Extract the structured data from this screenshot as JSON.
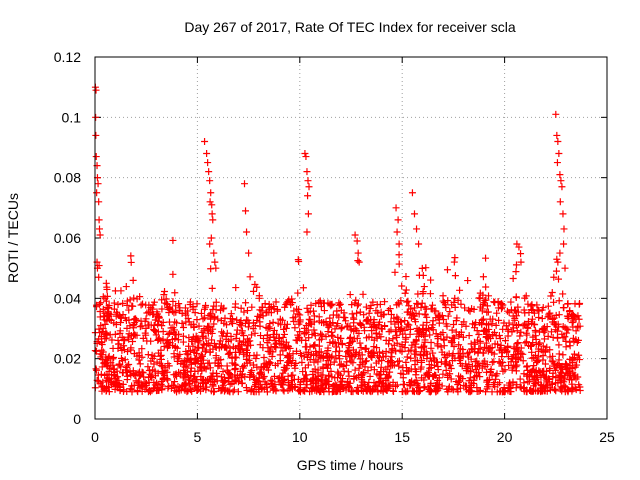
{
  "chart_data": {
    "type": "scatter",
    "title": "Day 267 of 2017, Rate Of TEC Index for receiver scla",
    "xlabel": "GPS time / hours",
    "ylabel": "ROTI / TECUs",
    "xlim": [
      0,
      25
    ],
    "ylim": [
      0,
      0.12
    ],
    "xticks": [
      0,
      5,
      10,
      15,
      20,
      25
    ],
    "yticks": [
      0,
      0.02,
      0.04,
      0.06,
      0.08,
      0.1,
      0.12
    ],
    "xtick_labels": [
      "0",
      "5",
      "10",
      "15",
      "20",
      "25"
    ],
    "ytick_labels": [
      "0",
      "0.02",
      "0.04",
      "0.06",
      "0.08",
      "0.1",
      "0.12"
    ],
    "grid": true,
    "marker": "+",
    "color": "#ff0000",
    "series": [
      {
        "points": [
          [
            0.02,
            0.11
          ],
          [
            0.05,
            0.109
          ],
          [
            0.03,
            0.1
          ],
          [
            0.04,
            0.094
          ],
          [
            0.06,
            0.087
          ],
          [
            0.1,
            0.084
          ],
          [
            0.12,
            0.08
          ],
          [
            0.15,
            0.078
          ],
          [
            0.08,
            0.075
          ],
          [
            0.18,
            0.072
          ],
          [
            0.2,
            0.066
          ],
          [
            0.22,
            0.063
          ],
          [
            0.25,
            0.061
          ],
          [
            0.1,
            0.052
          ],
          [
            0.12,
            0.05
          ],
          [
            0.18,
            0.047
          ],
          [
            0.22,
            0.038
          ],
          [
            0.28,
            0.031
          ],
          [
            0.35,
            0.029
          ],
          [
            0.4,
            0.03
          ],
          [
            5.35,
            0.092
          ],
          [
            5.45,
            0.088
          ],
          [
            5.5,
            0.085
          ],
          [
            5.55,
            0.082
          ],
          [
            5.6,
            0.079
          ],
          [
            5.65,
            0.075
          ],
          [
            5.62,
            0.072
          ],
          [
            5.7,
            0.071
          ],
          [
            5.72,
            0.068
          ],
          [
            5.75,
            0.066
          ],
          [
            5.68,
            0.06
          ],
          [
            5.6,
            0.058
          ],
          [
            5.8,
            0.055
          ],
          [
            5.85,
            0.052
          ],
          [
            5.9,
            0.05
          ],
          [
            7.3,
            0.078
          ],
          [
            7.35,
            0.069
          ],
          [
            7.4,
            0.062
          ],
          [
            7.5,
            0.055
          ],
          [
            10.25,
            0.088
          ],
          [
            10.3,
            0.087
          ],
          [
            10.35,
            0.082
          ],
          [
            10.4,
            0.079
          ],
          [
            10.45,
            0.077
          ],
          [
            10.38,
            0.074
          ],
          [
            10.42,
            0.068
          ],
          [
            10.35,
            0.062
          ],
          [
            12.7,
            0.061
          ],
          [
            12.8,
            0.059
          ],
          [
            12.85,
            0.055
          ],
          [
            12.9,
            0.052
          ],
          [
            14.7,
            0.07
          ],
          [
            14.8,
            0.066
          ],
          [
            14.75,
            0.062
          ],
          [
            14.85,
            0.058
          ],
          [
            15.5,
            0.075
          ],
          [
            15.6,
            0.068
          ],
          [
            15.7,
            0.063
          ],
          [
            15.8,
            0.058
          ],
          [
            20.6,
            0.058
          ],
          [
            20.7,
            0.057
          ],
          [
            20.8,
            0.052
          ],
          [
            22.5,
            0.101
          ],
          [
            22.55,
            0.094
          ],
          [
            22.6,
            0.092
          ],
          [
            22.65,
            0.088
          ],
          [
            22.58,
            0.085
          ],
          [
            22.7,
            0.081
          ],
          [
            22.75,
            0.079
          ],
          [
            22.8,
            0.077
          ],
          [
            22.72,
            0.072
          ],
          [
            22.85,
            0.068
          ],
          [
            22.9,
            0.063
          ],
          [
            22.88,
            0.058
          ],
          [
            22.7,
            0.055
          ],
          [
            22.6,
            0.052
          ],
          [
            22.95,
            0.05
          ]
        ]
      }
    ],
    "generated_cloud": {
      "x_range": [
        0,
        23.7
      ],
      "typical_range": [
        0.005,
        0.035
      ],
      "burst_centers": [
        0.2,
        1.8,
        3.8,
        5.6,
        7.5,
        9.8,
        12.7,
        14.8,
        16.0,
        17.5,
        19.0,
        20.7,
        22.6
      ],
      "point_count": 2600
    }
  }
}
